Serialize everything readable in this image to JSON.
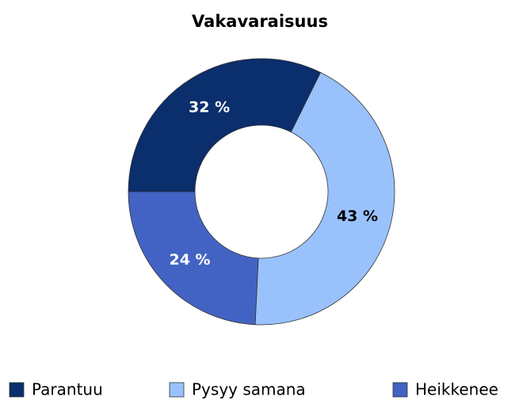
{
  "chart_data": {
    "type": "donut",
    "title": "Vakavaraisuus",
    "categories": [
      "Parantuu",
      "Pysyy samana",
      "Heikkenee"
    ],
    "values": [
      32,
      43,
      24
    ],
    "value_labels": [
      "32 %",
      "43 %",
      "24 %"
    ],
    "colors": [
      "#0b2e6c",
      "#99c2fd",
      "#4363c4"
    ],
    "label_colors": [
      "#ffffff",
      "#000000",
      "#ffffff"
    ],
    "legend": "bottom"
  }
}
